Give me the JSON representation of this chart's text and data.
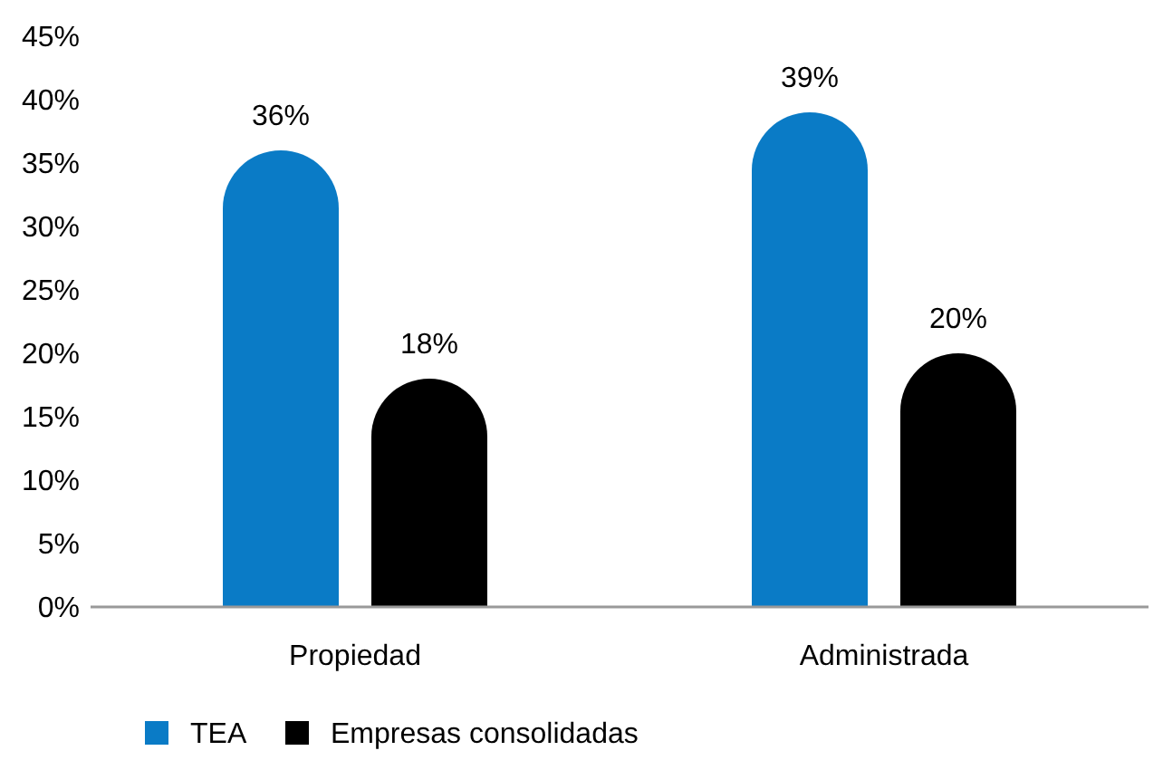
{
  "chart_data": {
    "type": "bar",
    "categories": [
      "Propiedad",
      "Administrada"
    ],
    "series": [
      {
        "name": "TEA",
        "color": "#0a7bc6",
        "values": [
          36,
          39
        ],
        "value_labels": [
          "36%",
          "39%"
        ]
      },
      {
        "name": "Empresas consolidadas",
        "color": "#000000",
        "values": [
          18,
          20
        ],
        "value_labels": [
          "18%",
          "20%"
        ]
      }
    ],
    "ylim": [
      0,
      45
    ],
    "yticks": [
      {
        "value": 0,
        "label": "0%"
      },
      {
        "value": 5,
        "label": "5%"
      },
      {
        "value": 10,
        "label": "10%"
      },
      {
        "value": 15,
        "label": "15%"
      },
      {
        "value": 20,
        "label": "20%"
      },
      {
        "value": 25,
        "label": "25%"
      },
      {
        "value": 30,
        "label": "30%"
      },
      {
        "value": 35,
        "label": "35%"
      },
      {
        "value": 40,
        "label": "40%"
      },
      {
        "value": 45,
        "label": "45%"
      }
    ],
    "grid": false,
    "legend": "bottom left"
  }
}
